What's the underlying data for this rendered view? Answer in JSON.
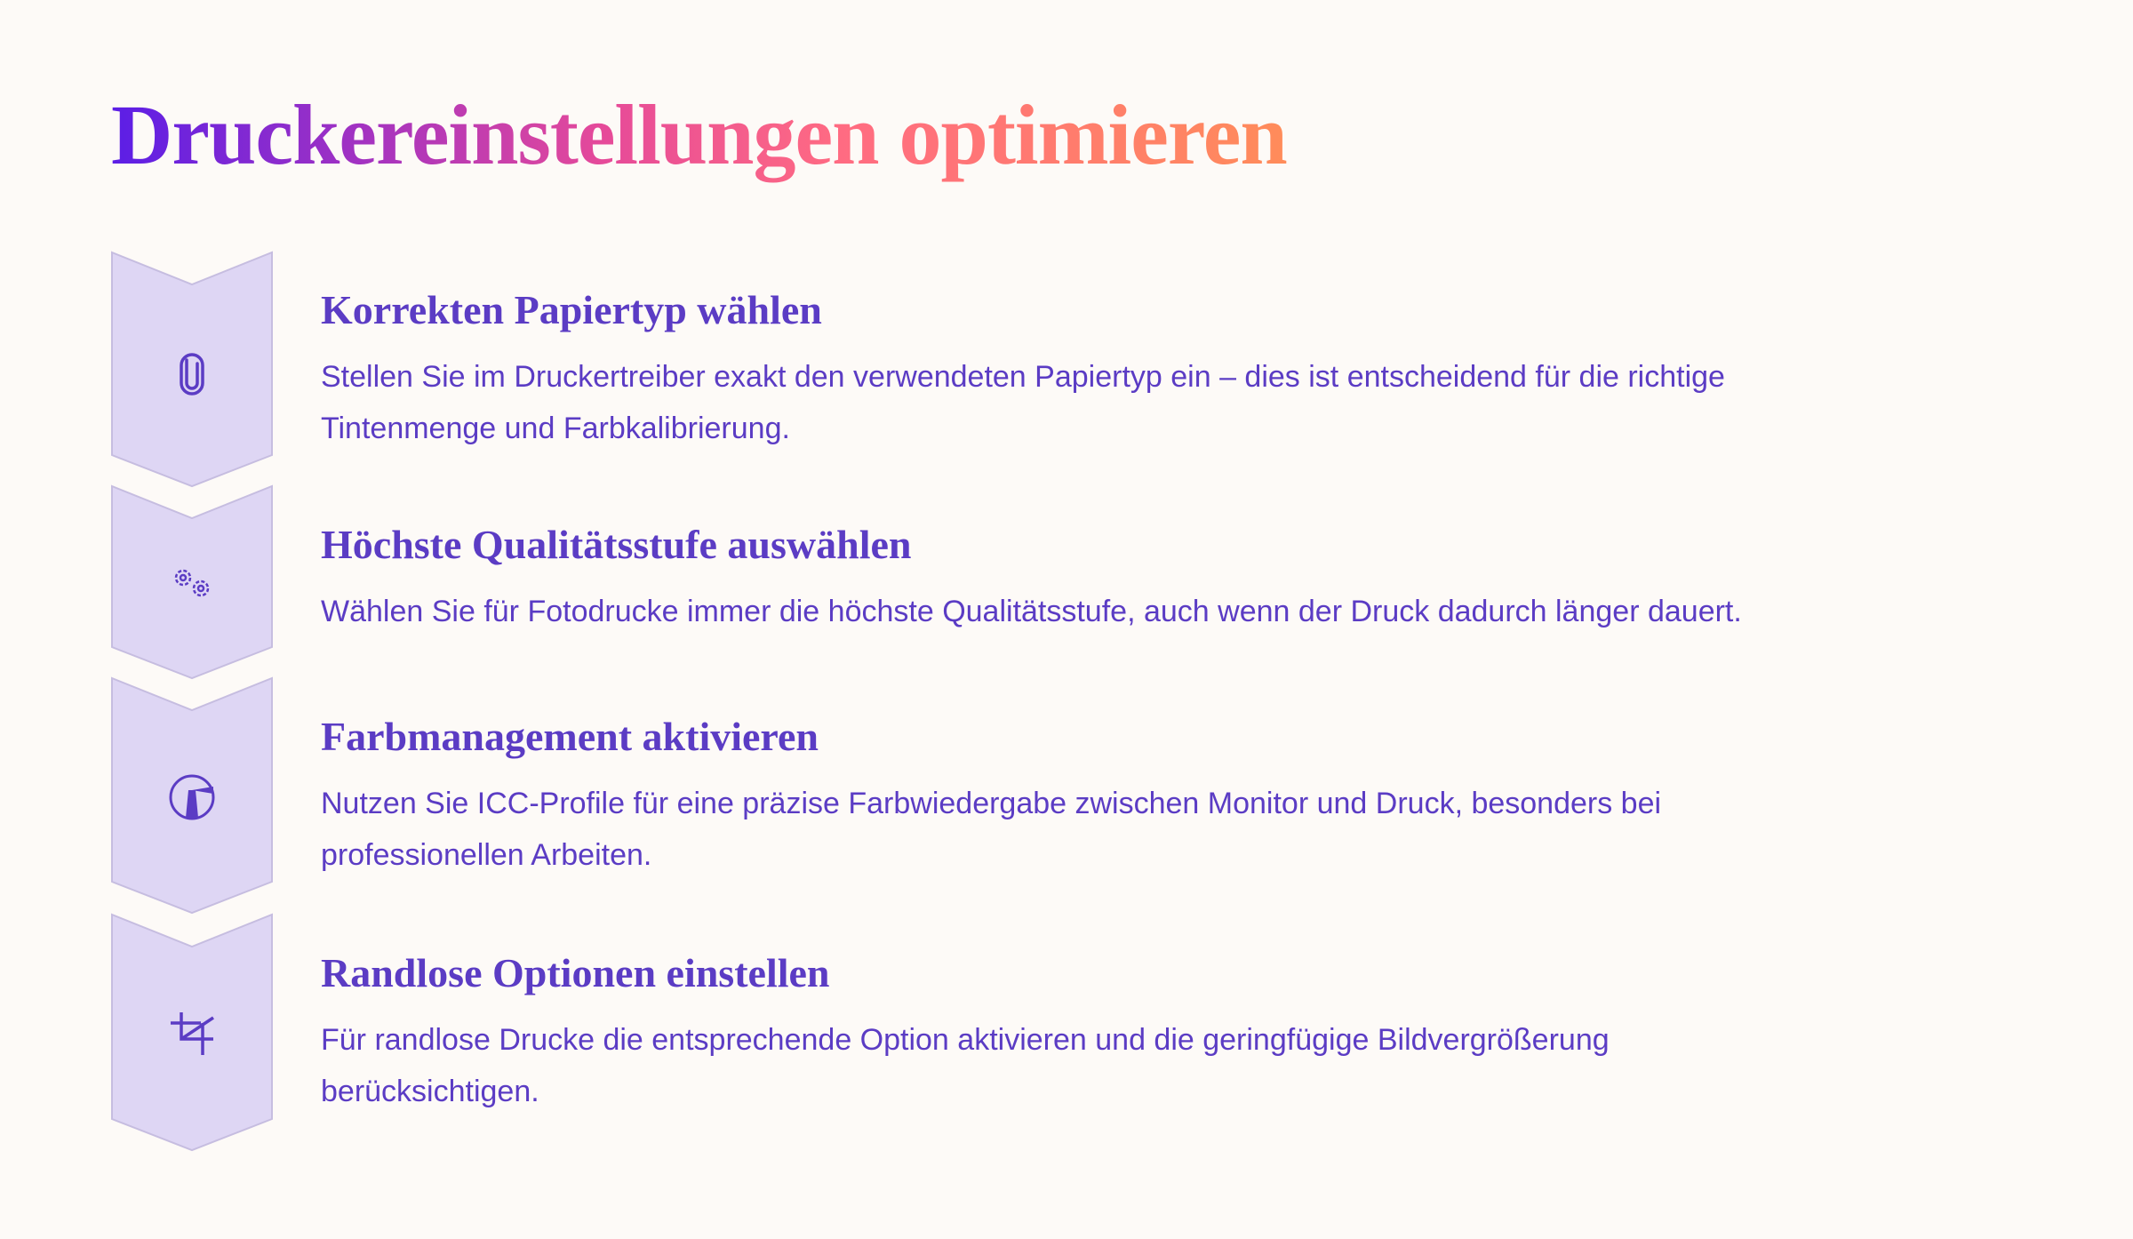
{
  "title": "Druckereinstellungen optimieren",
  "colors": {
    "gradient_start": "#5b1ee6",
    "gradient_end": "#ff8c5a",
    "text": "#5b3cc4",
    "chevron_fill": "#ded6f4",
    "chevron_stroke": "#c6bde0",
    "background": "#fdfaf7"
  },
  "steps": [
    {
      "icon": "paperclip-icon",
      "heading": "Korrekten Papiertyp wählen",
      "text": "Stellen Sie im Druckertreiber exakt den verwendeten Papiertyp ein – dies ist entscheidend für die richtige Tintenmenge und Farbkalibrierung."
    },
    {
      "icon": "gears-icon",
      "heading": "Höchste Qualitätsstufe auswählen",
      "text": "Wählen Sie für Fotodrucke immer die höchste Qualitätsstufe, auch wenn der Druck dadurch länger dauert."
    },
    {
      "icon": "lighthouse-icon",
      "heading": "Farbmanagement aktivieren",
      "text": "Nutzen Sie ICC-Profile für eine präzise Farbwiedergabe zwischen Monitor und Druck, besonders bei professionellen Arbeiten."
    },
    {
      "icon": "crop-icon",
      "heading": "Randlose Optionen einstellen",
      "text": "Für randlose Drucke die entsprechende Option aktivieren und die geringfügige Bildvergrößerung berücksichtigen."
    }
  ]
}
